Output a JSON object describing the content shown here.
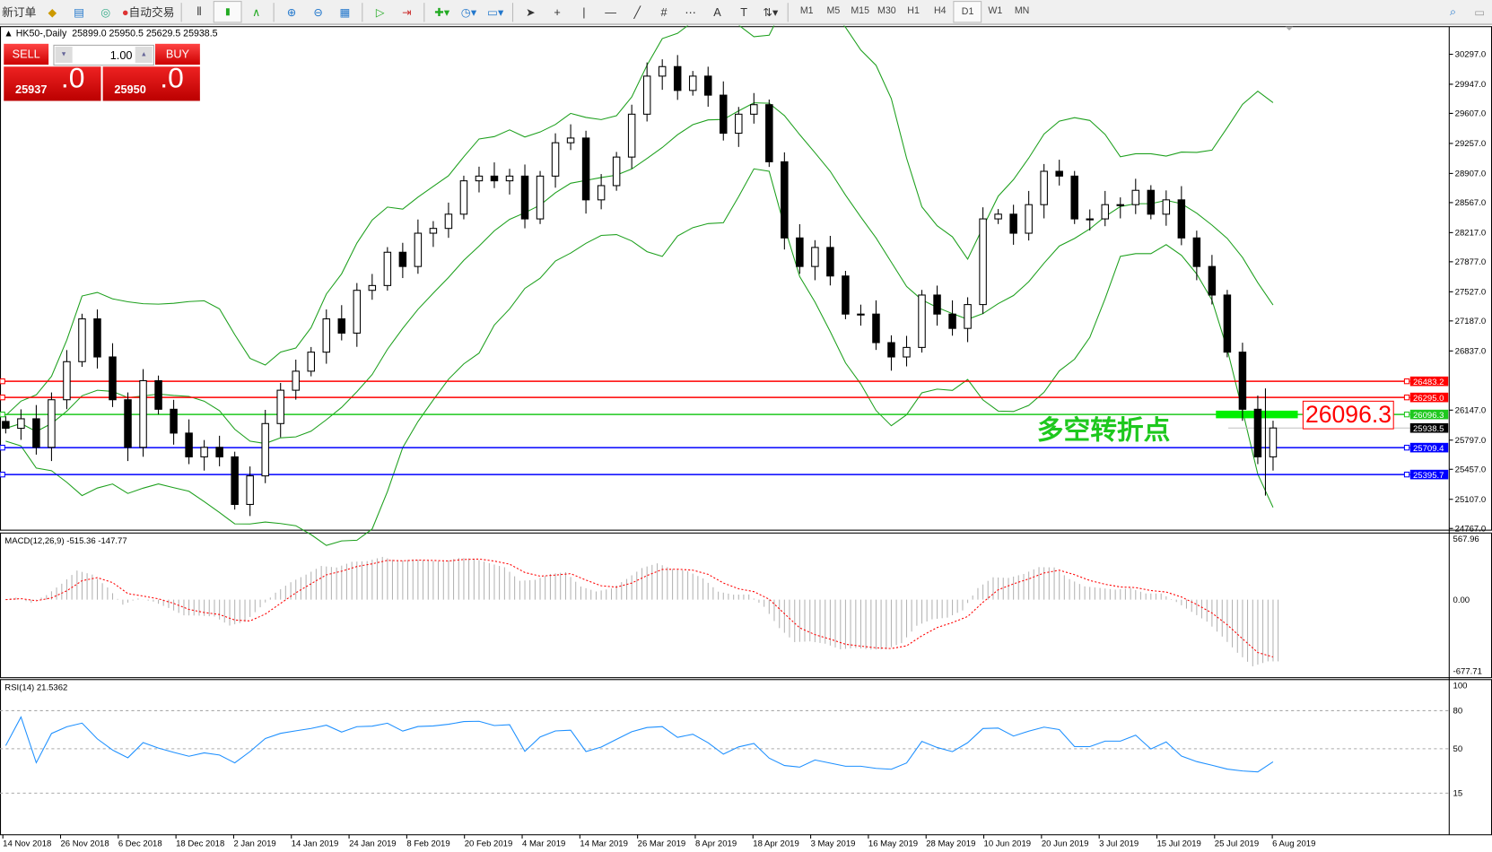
{
  "toolbar": {
    "new_order": "新订单",
    "auto_trading": "自动交易",
    "icons": [
      "history-icon",
      "terminal-icon",
      "signal-icon",
      "auto-trading-icon",
      "bar-chart-icon",
      "candle-chart-icon",
      "line-chart-icon",
      "zoom-in-icon",
      "zoom-out-icon",
      "tile-windows-icon",
      "auto-scroll-icon",
      "chart-shift-icon",
      "indicators-icon",
      "period-icon",
      "templates-icon",
      "cursor-icon",
      "crosshair-icon",
      "vertical-line-icon",
      "horizontal-line-icon",
      "trendline-icon",
      "fibonacci-icon",
      "fibo-fan-icon",
      "text-icon",
      "text-label-icon",
      "arrows-icon"
    ],
    "timeframes": [
      "M1",
      "M5",
      "M15",
      "M30",
      "H1",
      "H4",
      "D1",
      "W1",
      "MN"
    ],
    "active_timeframe": "D1"
  },
  "chart_header": {
    "symbol": "HK50-,Daily",
    "ohlc": "25899.0 25950.5 25629.5 25938.5"
  },
  "trade_panel": {
    "sell_label": "SELL",
    "buy_label": "BUY",
    "lots": "1.00",
    "sell_small": "25937",
    "sell_big": ".0",
    "buy_small": "25950",
    "buy_big": ".0"
  },
  "annotation": {
    "text": "多空转折点",
    "price_label": "26096.3"
  },
  "colors": {
    "bull": "#ffffff",
    "bear": "#000000",
    "bands": "#1ea01e",
    "macd_signal": "#ff0000",
    "rsi": "#1e90ff",
    "red_line": "#ff0000",
    "green_line": "#1ec81e",
    "blue_line": "#0000ff"
  },
  "chart_data": [
    {
      "type": "candlestick",
      "title": "HK50-,Daily",
      "ylim": [
        24767,
        30450
      ],
      "yticks": [
        "30297.0",
        "29947.0",
        "29607.0",
        "29257.0",
        "28907.0",
        "28567.0",
        "28217.0",
        "27877.0",
        "27527.0",
        "27187.0",
        "26837.0",
        "26147.0",
        "25797.0",
        "25457.0",
        "25107.0",
        "24767.0"
      ],
      "xticks": [
        "14 Nov 2018",
        "26 Nov 2018",
        "6 Dec 2018",
        "18 Dec 2018",
        "2 Jan 2019",
        "14 Jan 2019",
        "24 Jan 2019",
        "8 Feb 2019",
        "20 Feb 2019",
        "4 Mar 2019",
        "14 Mar 2019",
        "26 Mar 2019",
        "8 Apr 2019",
        "18 Apr 2019",
        "3 May 2019",
        "16 May 2019",
        "28 May 2019",
        "10 Jun 2019",
        "20 Jun 2019",
        "3 Jul 2019",
        "15 Jul 2019",
        "25 Jul 2019",
        "6 Aug 2019"
      ],
      "close": [
        25935,
        26046,
        25713,
        26268,
        26712,
        27211,
        26767,
        26268,
        25713,
        26490,
        26157,
        25879,
        25602,
        25713,
        25602,
        25047,
        25380,
        25990,
        26379,
        26601,
        26823,
        27211,
        27045,
        27544,
        27600,
        27988,
        27822,
        28210,
        28266,
        28432,
        28821,
        28876,
        28821,
        28876,
        28377,
        28876,
        29265,
        29320,
        28599,
        28765,
        29098,
        29598,
        30042,
        30153,
        29875,
        30042,
        29820,
        29376,
        29598,
        29709,
        29043,
        28155,
        27822,
        28044,
        27711,
        27267,
        27267,
        26934,
        26767,
        26878,
        27489,
        27267,
        27100,
        27378,
        28377,
        28432,
        28210,
        28543,
        28932,
        28876,
        28377,
        28377,
        28543,
        28543,
        28710,
        28432,
        28599,
        28155,
        27822,
        27489,
        26823,
        26157,
        25602,
        25938.5
      ],
      "hlines": [
        {
          "price": 26483.2,
          "label": "26483.2",
          "color": "#ff0000"
        },
        {
          "price": 26295.0,
          "label": "26295.0",
          "color": "#ff0000"
        },
        {
          "price": 26096.3,
          "label": "26096.3",
          "color": "#1ec81e"
        },
        {
          "price": 25938.5,
          "label": "25938.5",
          "color": "#000000"
        },
        {
          "price": 25709.4,
          "label": "25709.4",
          "color": "#0000ff"
        },
        {
          "price": 25395.7,
          "label": "25395.7",
          "color": "#0000ff"
        }
      ],
      "overlay": "Bollinger Bands"
    },
    {
      "type": "bar",
      "title": "MACD(12,26,9) -515.36 -147.77",
      "ylim": [
        -677.71,
        567.96
      ],
      "yticks": [
        "567.96",
        "0.00",
        "-677.71"
      ]
    },
    {
      "type": "line",
      "title": "RSI(14) 21.5362",
      "ylim": [
        0,
        100
      ],
      "yticks": [
        "100",
        "80",
        "50",
        "15"
      ],
      "levels": [
        80,
        50,
        15
      ]
    }
  ]
}
